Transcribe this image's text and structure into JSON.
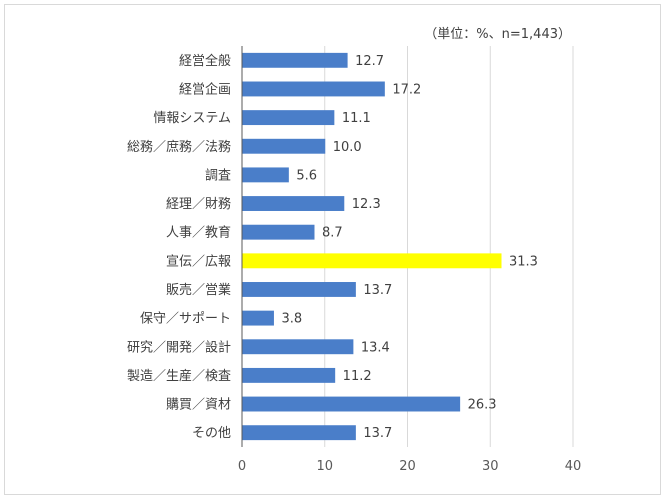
{
  "chart_data": {
    "type": "bar",
    "orientation": "horizontal",
    "unit_note": "（単位：%、n=1,443）",
    "categories": [
      "経営全般",
      "経営企画",
      "情報システム",
      "総務／庶務／法務",
      "調査",
      "経理／財務",
      "人事／教育",
      "宣伝／広報",
      "販売／営業",
      "保守／サポート",
      "研究／開発／設計",
      "製造／生産／検査",
      "購買／資材",
      "その他"
    ],
    "values": [
      12.7,
      17.2,
      11.1,
      10.0,
      5.6,
      12.3,
      8.7,
      31.3,
      13.7,
      3.8,
      13.4,
      11.2,
      26.3,
      13.7
    ],
    "value_labels": [
      "12.7",
      "17.2",
      "11.1",
      "10.0",
      "5.6",
      "12.3",
      "8.7",
      "31.3",
      "13.7",
      "3.8",
      "13.4",
      "11.2",
      "26.3",
      "13.7"
    ],
    "highlight_index": 7,
    "xlim": [
      0,
      40
    ],
    "xticks": [
      "0",
      "10",
      "20",
      "30",
      "40"
    ],
    "grid": true,
    "colors": {
      "bar": "#4a7ec9",
      "highlight": "#ffff00",
      "grid": "#d9d9d9",
      "axis": "#595959"
    }
  }
}
